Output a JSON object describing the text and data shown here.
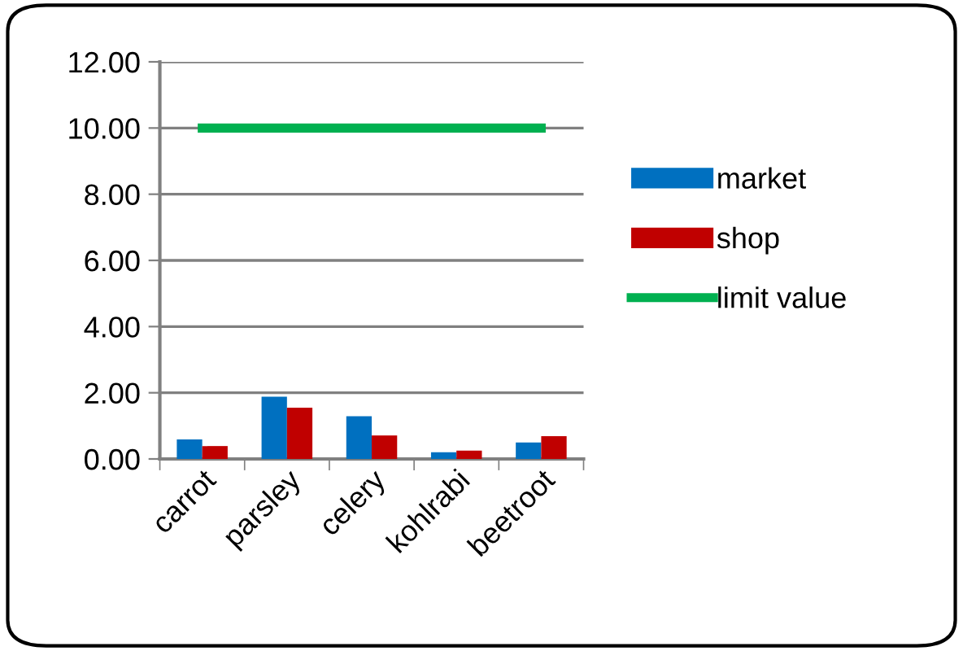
{
  "chart_data": {
    "type": "bar",
    "categories": [
      "carrot",
      "parsley",
      "celery",
      "kohlrabi",
      "beetroot"
    ],
    "series": [
      {
        "name": "market",
        "color": "#0070c0",
        "values": [
          0.59,
          1.88,
          1.29,
          0.2,
          0.5
        ]
      },
      {
        "name": "shop",
        "color": "#c00000",
        "values": [
          0.39,
          1.55,
          0.71,
          0.25,
          0.69
        ]
      },
      {
        "name": "limit value",
        "color": "#00b050",
        "type": "line",
        "values": [
          10,
          10,
          10,
          10,
          10
        ]
      }
    ],
    "ylim": [
      0,
      12
    ],
    "yticks": [
      {
        "value": 0,
        "label": "0.00"
      },
      {
        "value": 2,
        "label": "2.00"
      },
      {
        "value": 4,
        "label": "4.00"
      },
      {
        "value": 6,
        "label": "6.00"
      },
      {
        "value": 8,
        "label": "8.00"
      },
      {
        "value": 10,
        "label": "10.00"
      },
      {
        "value": 12,
        "label": "12.00"
      }
    ],
    "grid": "y",
    "legend": "right",
    "marker": "none"
  }
}
